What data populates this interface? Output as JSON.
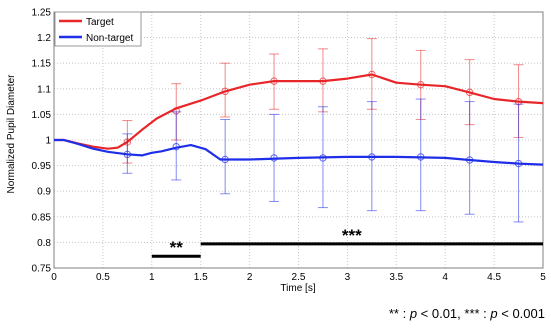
{
  "chart_data": {
    "type": "line",
    "xlabel": "Time [s]",
    "ylabel": "Normalized Pupil Diameter",
    "xlim": [
      0,
      5
    ],
    "ylim": [
      0.75,
      1.25
    ],
    "x_ticks": [
      "0",
      "0.5",
      "1",
      "1.5",
      "2",
      "2.5",
      "3",
      "3.5",
      "4",
      "4.5",
      "5"
    ],
    "y_ticks": [
      "0.75",
      "0.8",
      "0.85",
      "0.9",
      "0.95",
      "1",
      "1.05",
      "1.1",
      "1.15",
      "1.2",
      "1.25"
    ],
    "grid": true,
    "legend_position": "top-left",
    "series": [
      {
        "name": "Target",
        "color": "#e8262a",
        "curve_x": [
          0,
          0.1,
          0.25,
          0.4,
          0.55,
          0.65,
          0.75,
          0.9,
          1.05,
          1.25,
          1.5,
          1.75,
          2.0,
          2.25,
          2.5,
          2.75,
          3.0,
          3.25,
          3.5,
          3.75,
          4.0,
          4.25,
          4.5,
          4.75,
          5.0
        ],
        "curve_y": [
          1.0,
          1.0,
          0.993,
          0.987,
          0.983,
          0.985,
          0.996,
          1.02,
          1.042,
          1.062,
          1.077,
          1.095,
          1.108,
          1.115,
          1.115,
          1.115,
          1.12,
          1.128,
          1.112,
          1.108,
          1.105,
          1.093,
          1.08,
          1.075,
          1.072
        ],
        "points": [
          {
            "x": 0.75,
            "y": 0.996,
            "lo": 0.955,
            "hi": 1.038
          },
          {
            "x": 1.25,
            "y": 1.057,
            "lo": 1.0,
            "hi": 1.11
          },
          {
            "x": 1.75,
            "y": 1.095,
            "lo": 1.045,
            "hi": 1.15
          },
          {
            "x": 2.25,
            "y": 1.115,
            "lo": 1.06,
            "hi": 1.168
          },
          {
            "x": 2.75,
            "y": 1.115,
            "lo": 1.055,
            "hi": 1.178
          },
          {
            "x": 3.25,
            "y": 1.128,
            "lo": 1.06,
            "hi": 1.198
          },
          {
            "x": 3.75,
            "y": 1.108,
            "lo": 1.04,
            "hi": 1.175
          },
          {
            "x": 4.25,
            "y": 1.093,
            "lo": 1.03,
            "hi": 1.157
          },
          {
            "x": 4.75,
            "y": 1.075,
            "lo": 1.005,
            "hi": 1.147
          }
        ]
      },
      {
        "name": "Non-target",
        "color": "#1f2ee8",
        "curve_x": [
          0,
          0.1,
          0.25,
          0.4,
          0.55,
          0.75,
          0.9,
          1.0,
          1.1,
          1.25,
          1.4,
          1.55,
          1.7,
          2.0,
          2.5,
          3.0,
          3.5,
          4.0,
          4.25,
          4.5,
          4.75,
          5.0
        ],
        "curve_y": [
          1.0,
          1.0,
          0.992,
          0.983,
          0.977,
          0.972,
          0.97,
          0.975,
          0.978,
          0.985,
          0.99,
          0.982,
          0.962,
          0.962,
          0.965,
          0.967,
          0.967,
          0.965,
          0.961,
          0.957,
          0.954,
          0.952
        ],
        "points": [
          {
            "x": 0.75,
            "y": 0.972,
            "lo": 0.935,
            "hi": 1.012
          },
          {
            "x": 1.25,
            "y": 0.987,
            "lo": 0.922,
            "hi": 1.055
          },
          {
            "x": 1.75,
            "y": 0.962,
            "lo": 0.895,
            "hi": 1.04
          },
          {
            "x": 2.25,
            "y": 0.965,
            "lo": 0.88,
            "hi": 1.05
          },
          {
            "x": 2.75,
            "y": 0.965,
            "lo": 0.868,
            "hi": 1.065
          },
          {
            "x": 3.25,
            "y": 0.967,
            "lo": 0.862,
            "hi": 1.075
          },
          {
            "x": 3.75,
            "y": 0.967,
            "lo": 0.862,
            "hi": 1.08
          },
          {
            "x": 4.25,
            "y": 0.961,
            "lo": 0.855,
            "hi": 1.075
          },
          {
            "x": 4.75,
            "y": 0.954,
            "lo": 0.84,
            "hi": 1.07
          }
        ]
      }
    ],
    "significance": [
      {
        "label": "**",
        "x_start": 1.0,
        "x_end": 1.5,
        "y": 0.773
      },
      {
        "label": "***",
        "x_start": 1.5,
        "x_end": 5.0,
        "y": 0.797
      }
    ]
  },
  "footnote": {
    "p1_stars": "** : ",
    "p_letter": "p",
    "p1_threshold": " < 0.01,  ",
    "p2_stars": "*** : ",
    "p2_threshold": " < 0.001"
  }
}
